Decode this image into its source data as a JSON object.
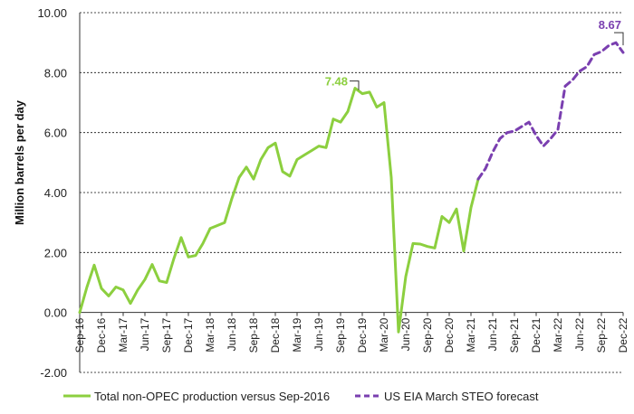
{
  "chart_data": {
    "type": "line",
    "ylabel": "Million barrels per day",
    "ylim": [
      -2.0,
      10.0
    ],
    "yticks": [
      "-2.00",
      "0.00",
      "2.00",
      "4.00",
      "6.00",
      "8.00",
      "10.00"
    ],
    "xtick_labels": [
      "Sep-16",
      "Dec-16",
      "Mar-17",
      "Jun-17",
      "Sep-17",
      "Dec-17",
      "Mar-18",
      "Jun-18",
      "Sep-18",
      "Dec-18",
      "Mar-19",
      "Jun-19",
      "Sep-19",
      "Dec-19",
      "Mar-20",
      "Jun-20",
      "Sep-20",
      "Dec-20",
      "Mar-21",
      "Jun-21",
      "Sep-21",
      "Dec-21",
      "Mar-22",
      "Jun-22",
      "Sep-22",
      "Dec-22"
    ],
    "grid": true,
    "legend_position": "bottom",
    "colors": {
      "actual": "#8ccf3f",
      "forecast": "#7a3fb0"
    },
    "series": [
      {
        "name": "Total non-OPEC production versus Sep-2016",
        "style": "solid",
        "start_month_label": "Sep-16",
        "values": [
          0.0,
          0.85,
          1.58,
          0.8,
          0.55,
          0.85,
          0.75,
          0.3,
          0.75,
          1.1,
          1.6,
          1.05,
          1.0,
          1.8,
          2.5,
          1.85,
          1.9,
          2.3,
          2.8,
          2.9,
          3.0,
          3.8,
          4.5,
          4.85,
          4.45,
          5.1,
          5.5,
          5.65,
          4.7,
          4.55,
          5.1,
          5.25,
          5.4,
          5.55,
          5.5,
          6.45,
          6.35,
          6.7,
          7.48,
          7.3,
          7.35,
          6.85,
          7.0,
          4.5,
          -0.65,
          1.2,
          2.3,
          2.28,
          2.2,
          2.15,
          3.2,
          3.0,
          3.45,
          2.05,
          3.5,
          4.45
        ]
      },
      {
        "name": "US EIA March STEO forecast",
        "style": "dashed",
        "start_month_label": "Apr-21",
        "values": [
          4.45,
          4.8,
          5.35,
          5.8,
          6.0,
          6.05,
          6.2,
          6.35,
          5.9,
          5.55,
          5.8,
          6.1,
          7.55,
          7.75,
          8.05,
          8.2,
          8.6,
          8.7,
          8.9,
          9.0,
          8.67
        ]
      }
    ],
    "annotations": [
      {
        "text": "7.48",
        "series": 0,
        "month_index": 38,
        "value": 7.48
      },
      {
        "text": "8.67",
        "series": 1,
        "month_index": 20,
        "value": 8.67
      }
    ]
  }
}
